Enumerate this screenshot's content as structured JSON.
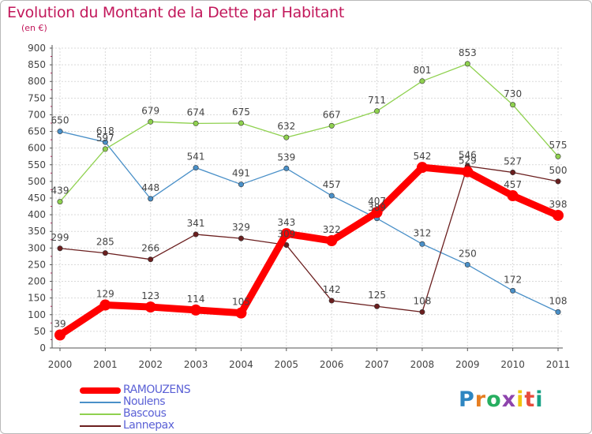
{
  "title": "Evolution du Montant de la Dette par Habitant",
  "unit_label": "(en €)",
  "logo": "Proxiti",
  "chart_data": {
    "type": "line",
    "title": "Evolution du Montant de la Dette par Habitant",
    "ylabel": "(en €)",
    "ylim": [
      0,
      900
    ],
    "yticks": [
      0,
      50,
      100,
      150,
      200,
      250,
      300,
      350,
      400,
      450,
      500,
      550,
      600,
      650,
      700,
      750,
      800,
      850,
      900
    ],
    "x": [
      "2000",
      "2001",
      "2002",
      "2003",
      "2004",
      "2005",
      "2006",
      "2007",
      "2008",
      "2009",
      "2010",
      "2011"
    ],
    "grid": true,
    "legend_position": "bottom-left",
    "series": [
      {
        "name": "RAMOUZENS",
        "color": "#ff0000",
        "values": [
          39,
          129,
          123,
          114,
          105,
          343,
          322,
          407,
          542,
          529,
          457,
          398
        ]
      },
      {
        "name": "Noulens",
        "color": "#4a90c8",
        "values": [
          650,
          618,
          448,
          541,
          491,
          539,
          457,
          389,
          312,
          250,
          172,
          108
        ]
      },
      {
        "name": "Bascous",
        "color": "#8fd14f",
        "values": [
          439,
          597,
          679,
          674,
          675,
          632,
          667,
          711,
          801,
          853,
          730,
          575
        ]
      },
      {
        "name": "Lannepax",
        "color": "#6b1f1f",
        "values": [
          299,
          285,
          266,
          341,
          329,
          309,
          142,
          125,
          108,
          546,
          527,
          500
        ]
      }
    ]
  }
}
